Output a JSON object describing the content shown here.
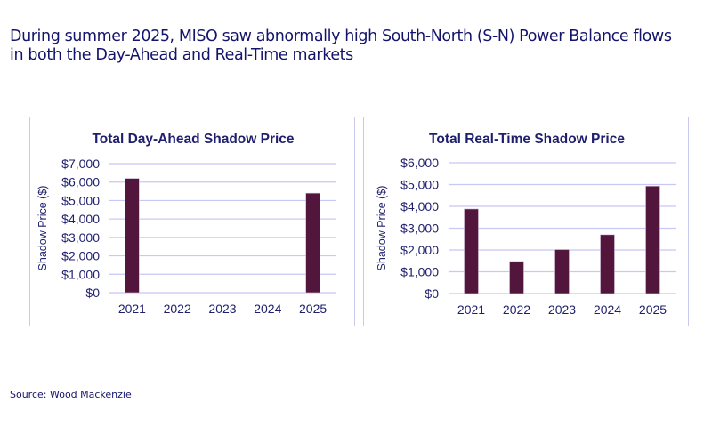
{
  "headline": "During summer 2025, MISO saw abnormally high South-North (S-N) Power Balance flows in both the Day-Ahead and Real-Time markets",
  "source": "Source: Wood Mackenzie",
  "colors": {
    "bar": "#52153b",
    "grid": "#c8c8f5",
    "text": "#1f1f6e",
    "headline": "#14146b"
  },
  "chart_data": [
    {
      "type": "bar",
      "title": "Total Day-Ahead Shadow Price",
      "xlabel": "",
      "ylabel": "Shadow Price ($)",
      "categories": [
        "2021",
        "2022",
        "2023",
        "2024",
        "2025"
      ],
      "values": [
        6200,
        0,
        0,
        0,
        5400
      ],
      "ylim": [
        0,
        7000
      ],
      "yticks": [
        "$0",
        "$1,000",
        "$2,000",
        "$3,000",
        "$4,000",
        "$5,000",
        "$6,000",
        "$7,000"
      ],
      "grid": true
    },
    {
      "type": "bar",
      "title": "Total Real-Time Shadow Price",
      "xlabel": "",
      "ylabel": "Shadow Price ($)",
      "categories": [
        "2021",
        "2022",
        "2023",
        "2024",
        "2025"
      ],
      "values": [
        3880,
        1480,
        2020,
        2700,
        4930
      ],
      "ylim": [
        0,
        6000
      ],
      "yticks": [
        "$0",
        "$1,000",
        "$2,000",
        "$3,000",
        "$4,000",
        "$5,000",
        "$6,000"
      ],
      "grid": true
    }
  ]
}
